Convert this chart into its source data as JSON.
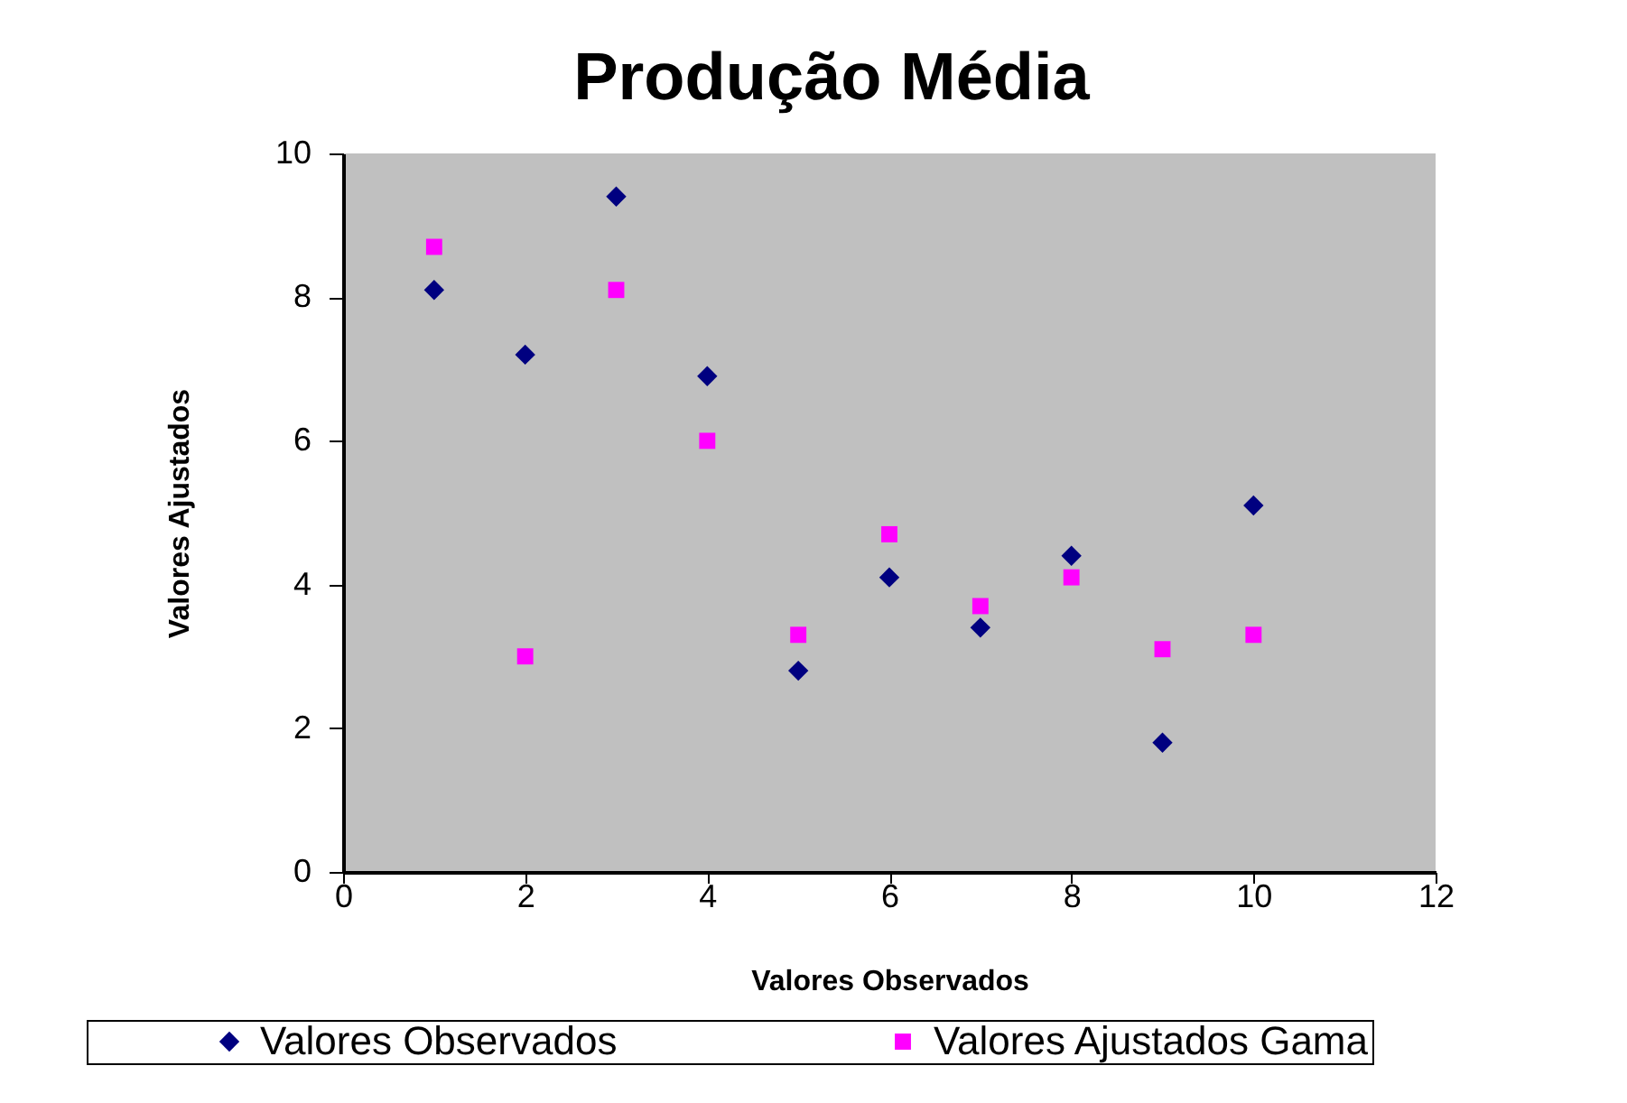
{
  "chart_data": {
    "type": "scatter",
    "title": "Produção Média",
    "xlabel": "Valores Observados",
    "ylabel": "Valores Ajustados",
    "x": [
      1,
      2,
      3,
      4,
      5,
      6,
      7,
      8,
      9,
      10
    ],
    "series": [
      {
        "name": "Valores Observados",
        "color": "#000080",
        "marker": "diamond",
        "values": [
          8.1,
          7.2,
          9.4,
          6.9,
          2.8,
          4.1,
          3.4,
          4.4,
          1.8,
          5.1
        ]
      },
      {
        "name": "Valores Ajustados Gama",
        "color": "#ff00ff",
        "marker": "square",
        "values": [
          8.7,
          3.0,
          8.1,
          6.0,
          3.3,
          4.7,
          3.7,
          4.1,
          3.1,
          3.3
        ]
      }
    ],
    "xlim": [
      0,
      12
    ],
    "xticks": [
      0,
      2,
      4,
      6,
      8,
      10,
      12
    ],
    "ylim": [
      0,
      10
    ],
    "yticks": [
      0,
      2,
      4,
      6,
      8,
      10
    ],
    "grid": false,
    "legend": "bottom"
  }
}
